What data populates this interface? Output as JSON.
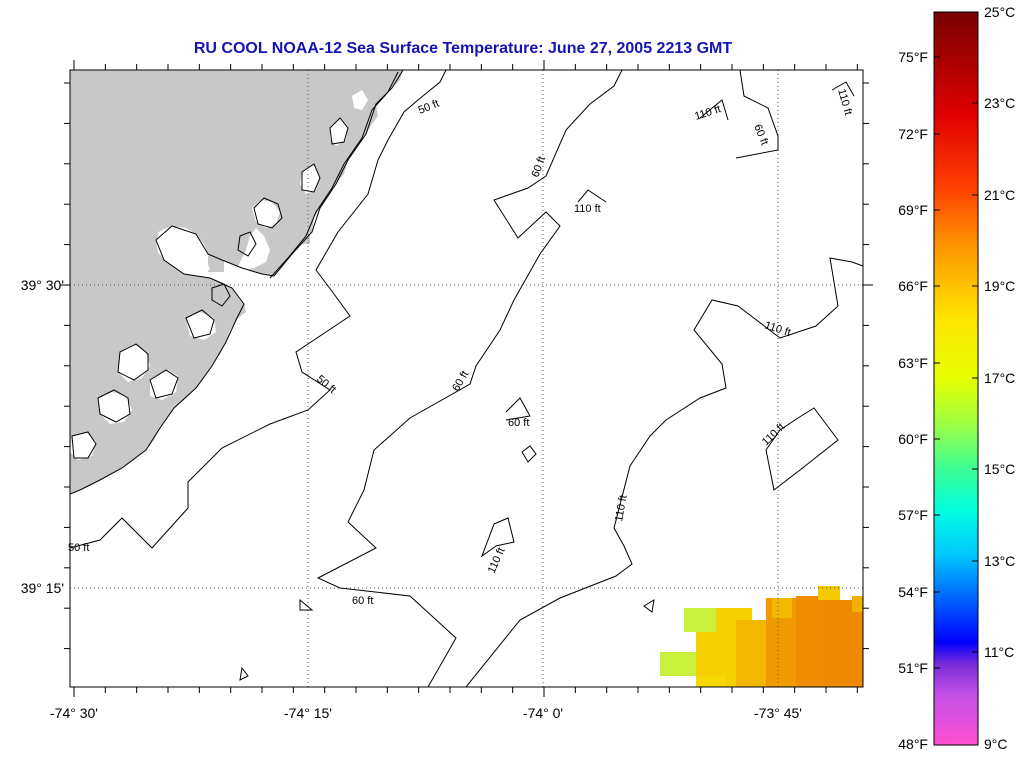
{
  "title": "RU COOL  NOAA-12  Sea Surface Temperature:  June 27, 2005 2213 GMT",
  "axes": {
    "x_ticks": [
      "-74° 30'",
      "-74° 15'",
      "-74° 0'",
      "-73° 45'"
    ],
    "y_ticks": [
      "39° 30'",
      "39° 15'"
    ]
  },
  "contours": {
    "labels": [
      "50 ft",
      "50 ft",
      "50 ft",
      "60 ft",
      "60 ft",
      "60 ft",
      "60 ft",
      "60 ft",
      "110 ft",
      "110 ft",
      "110 ft",
      "110 ft",
      "110 ft",
      "110 ft",
      "110 ft"
    ]
  },
  "colorbar": {
    "fahrenheit_labels": [
      "75°F",
      "72°F",
      "69°F",
      "66°F",
      "63°F",
      "60°F",
      "57°F",
      "54°F",
      "51°F",
      "48°F"
    ],
    "celsius_labels": [
      "25°C",
      "23°C",
      "21°C",
      "19°C",
      "17°C",
      "15°C",
      "13°C",
      "11°C",
      "9°C"
    ]
  },
  "colors": {
    "title": "#1414b4",
    "land": "#c8c8c8",
    "sst_orange": "#f08c00",
    "sst_yellow": "#f5d000",
    "sst_yellow_green": "#c8f03c"
  }
}
